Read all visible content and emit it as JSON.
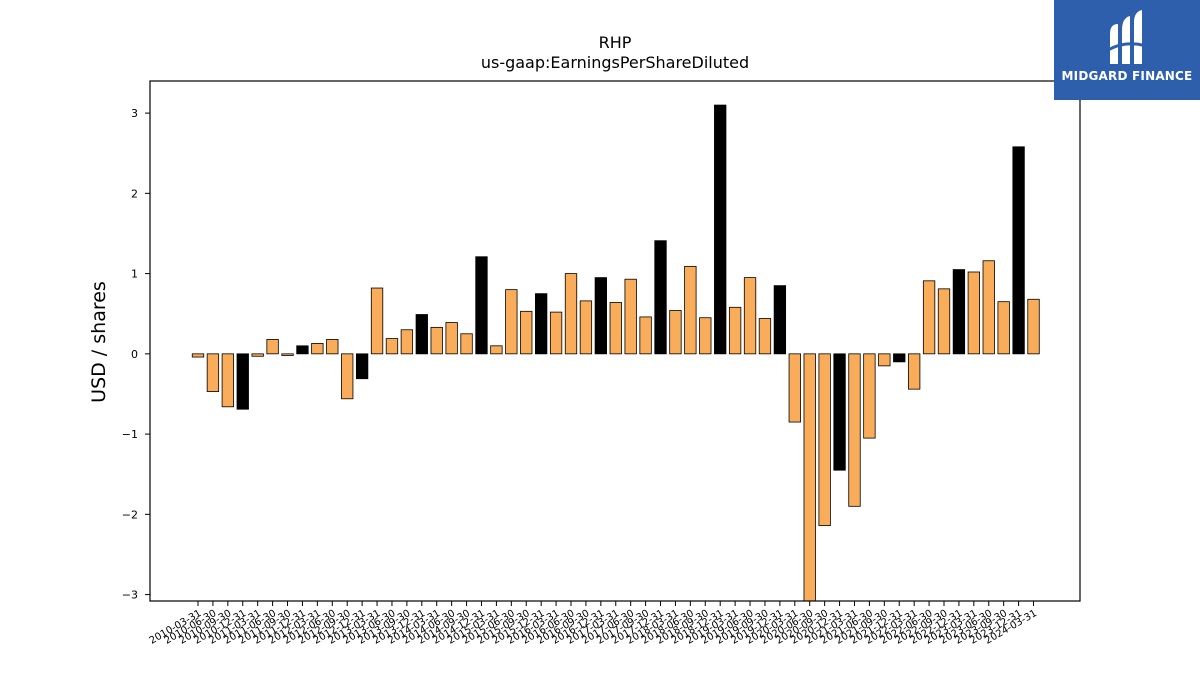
{
  "logo": {
    "text": "MIDGARD FINANCE"
  },
  "chart_data": {
    "type": "bar",
    "title": "RHP",
    "subtitle": "us-gaap:EarningsPerShareDiluted",
    "ylabel": "USD / shares",
    "xlabel": "",
    "ylim": [
      -3.08,
      3.4
    ],
    "yticks": [
      -3,
      -2,
      -1,
      0,
      1,
      2,
      3
    ],
    "colors": {
      "quarterly": "#f9ad5a",
      "annual": "#000000",
      "edge": "#000000"
    },
    "categories": [
      "2010-03-31",
      "2010-06-30",
      "2010-09-30",
      "2010-12-31",
      "2011-03-31",
      "2011-06-30",
      "2011-09-30",
      "2011-12-31",
      "2012-03-31",
      "2012-06-30",
      "2012-09-30",
      "2012-12-31",
      "2013-03-31",
      "2013-06-30",
      "2013-09-30",
      "2013-12-31",
      "2014-03-31",
      "2014-06-30",
      "2014-09-30",
      "2014-12-31",
      "2015-03-31",
      "2015-06-30",
      "2015-09-30",
      "2015-12-31",
      "2016-03-31",
      "2016-06-30",
      "2016-09-30",
      "2016-12-31",
      "2017-03-31",
      "2017-06-30",
      "2017-09-30",
      "2017-12-31",
      "2018-03-31",
      "2018-06-30",
      "2018-09-30",
      "2018-12-31",
      "2019-03-31",
      "2019-06-30",
      "2019-09-30",
      "2019-12-31",
      "2020-03-31",
      "2020-06-30",
      "2020-09-30",
      "2020-12-31",
      "2021-03-31",
      "2021-06-30",
      "2021-09-30",
      "2021-12-31",
      "2022-03-31",
      "2022-06-30",
      "2022-09-30",
      "2022-12-31",
      "2023-03-31",
      "2023-06-30",
      "2023-09-30",
      "2023-12-31",
      "2024-03-31"
    ],
    "values": [
      -0.04,
      -0.47,
      -0.66,
      -0.69,
      -0.03,
      0.18,
      -0.02,
      0.1,
      0.13,
      0.18,
      -0.56,
      -0.31,
      0.82,
      0.19,
      0.3,
      0.49,
      0.33,
      0.39,
      0.25,
      1.21,
      0.1,
      0.8,
      0.53,
      0.75,
      0.52,
      1.0,
      0.66,
      0.95,
      0.64,
      0.93,
      0.46,
      1.41,
      0.54,
      1.09,
      0.45,
      3.1,
      0.58,
      0.95,
      0.44,
      0.85,
      -0.85,
      -3.08,
      -2.14,
      -1.45,
      -1.9,
      -1.05,
      -0.15,
      -0.1,
      -0.44,
      0.91,
      0.81,
      1.05,
      1.02,
      1.16,
      0.65,
      2.58,
      0.68
    ],
    "annual": [
      false,
      false,
      false,
      true,
      false,
      false,
      false,
      true,
      false,
      false,
      false,
      true,
      false,
      false,
      false,
      true,
      false,
      false,
      false,
      true,
      false,
      false,
      false,
      true,
      false,
      false,
      false,
      true,
      false,
      false,
      false,
      true,
      false,
      false,
      false,
      true,
      false,
      false,
      false,
      true,
      false,
      false,
      false,
      true,
      false,
      false,
      false,
      true,
      false,
      false,
      false,
      true,
      false,
      false,
      false,
      true,
      false
    ]
  }
}
